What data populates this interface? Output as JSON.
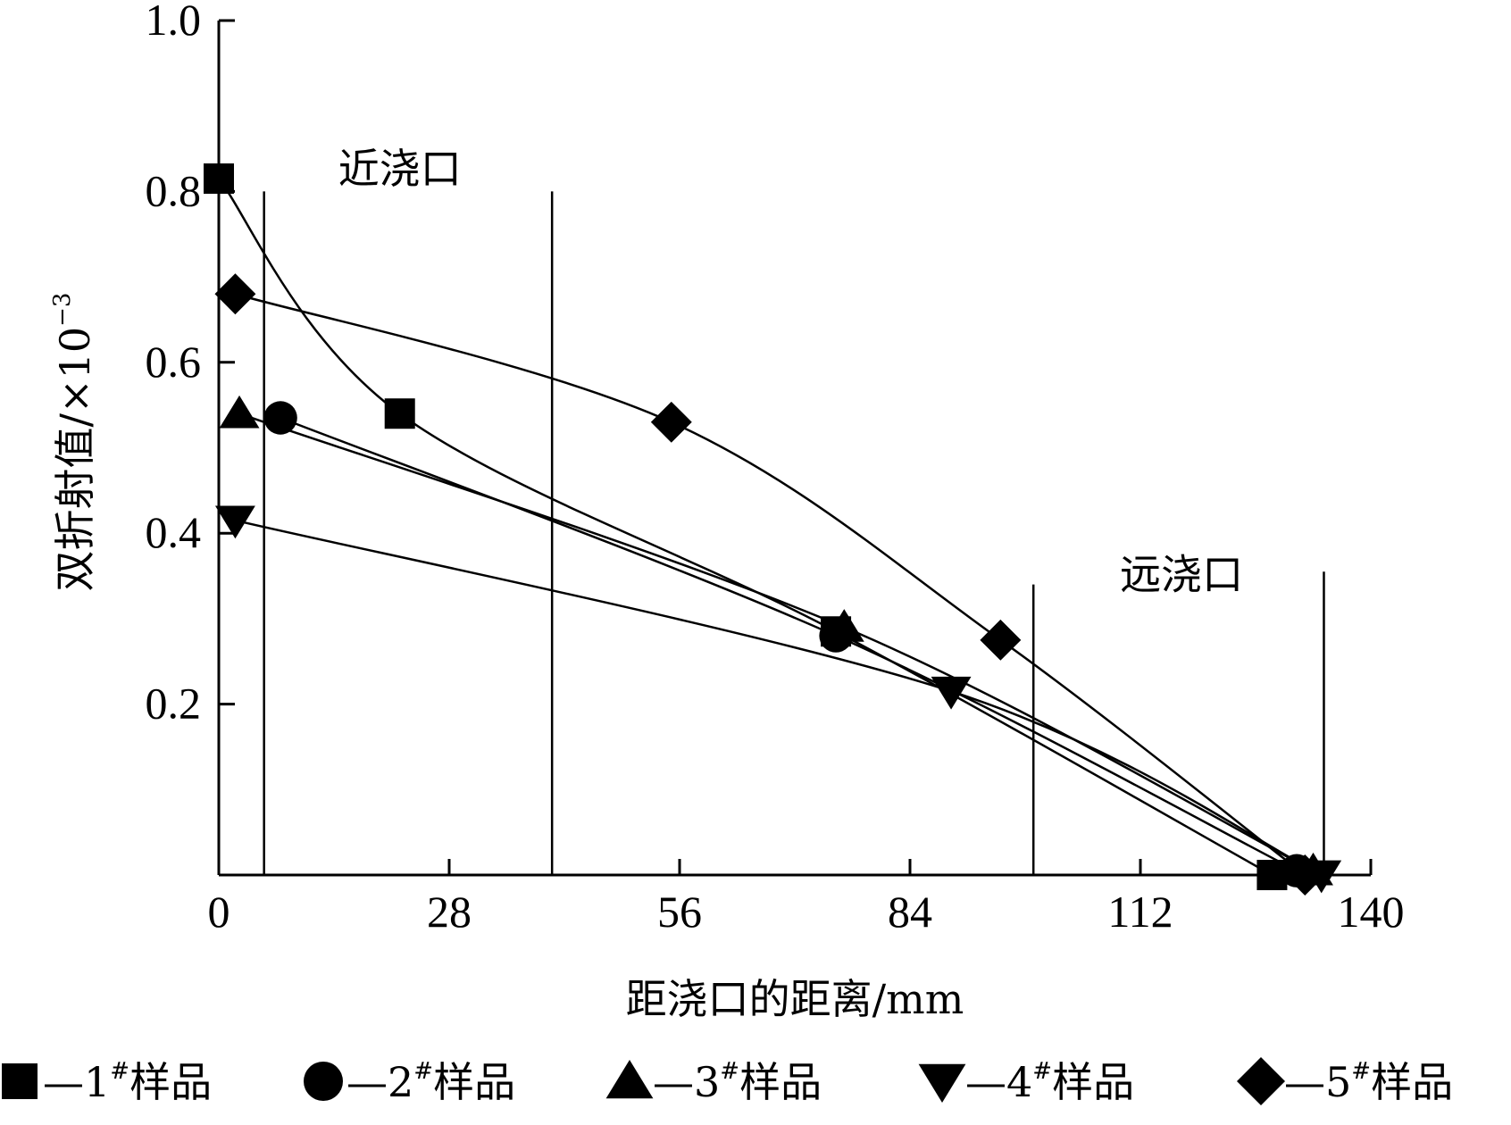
{
  "chart_data": {
    "type": "line",
    "xlabel": "距浇口的距离/mm",
    "ylabel": "双折射值/×10",
    "ylabel_exponent": "−3",
    "xlim": [
      0,
      140
    ],
    "ylim": [
      0,
      1.0
    ],
    "x_ticks": [
      0,
      28,
      56,
      84,
      112,
      140
    ],
    "x_tick_labels": [
      "0",
      "28",
      "56",
      "84",
      "112",
      "140"
    ],
    "y_ticks": [
      0.2,
      0.4,
      0.6,
      0.8,
      1.0
    ],
    "y_tick_labels": [
      "0.2",
      "0.4",
      "0.6",
      "0.8",
      "1.0"
    ],
    "grid": false,
    "region_lines_x": [
      5.5,
      40.5,
      99,
      134.3
    ],
    "regions": [
      {
        "label": "近浇口",
        "x": 22,
        "y": 0.81
      },
      {
        "label": "远浇口",
        "x": 117,
        "y": 0.335
      }
    ],
    "legend_position": "bottom",
    "series": [
      {
        "name": "—1",
        "sup": "#",
        "suffix": "样品",
        "marker": "square",
        "x": [
          0,
          22,
          75,
          128
        ],
        "y": [
          0.815,
          0.54,
          0.285,
          0.0
        ]
      },
      {
        "name": "—2",
        "sup": "#",
        "suffix": "样品",
        "marker": "circle",
        "x": [
          7.5,
          75,
          131
        ],
        "y": [
          0.535,
          0.28,
          0.005
        ]
      },
      {
        "name": "—3",
        "sup": "#",
        "suffix": "样品",
        "marker": "triangle-up",
        "x": [
          2.5,
          76,
          133
        ],
        "y": [
          0.54,
          0.29,
          0.005
        ]
      },
      {
        "name": "—4",
        "sup": "#",
        "suffix": "样品",
        "marker": "triangle-down",
        "x": [
          2,
          89,
          134
        ],
        "y": [
          0.415,
          0.215,
          0.0
        ]
      },
      {
        "name": "—5",
        "sup": "#",
        "suffix": "样品",
        "marker": "diamond",
        "x": [
          2,
          55,
          95,
          132
        ],
        "y": [
          0.68,
          0.53,
          0.275,
          0.0
        ]
      }
    ]
  }
}
